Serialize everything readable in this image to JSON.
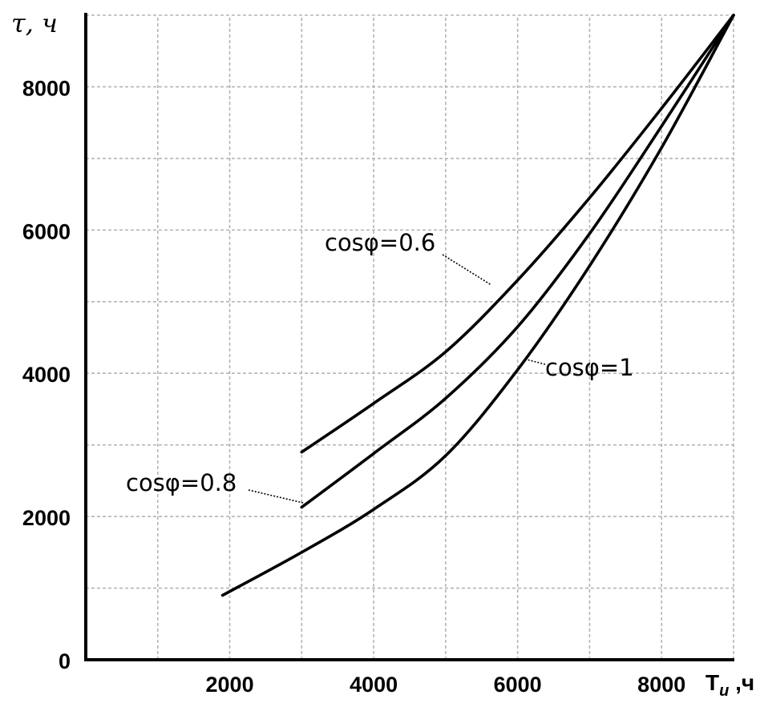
{
  "chart_data": {
    "type": "line",
    "ylabel": "τ, ч",
    "xlabel": {
      "main": "T",
      "sub": "и",
      "unit": " ,ч"
    },
    "xlim": [
      0,
      9000
    ],
    "ylim": [
      0,
      9000
    ],
    "grid": true,
    "x_ticks": [
      {
        "value": 2000,
        "label": "2000"
      },
      {
        "value": 4000,
        "label": "4000"
      },
      {
        "value": 6000,
        "label": "6000"
      },
      {
        "value": 8000,
        "label": "8000"
      }
    ],
    "y_ticks": [
      {
        "value": 0,
        "label": "0"
      },
      {
        "value": 2000,
        "label": "2000"
      },
      {
        "value": 4000,
        "label": "4000"
      },
      {
        "value": 6000,
        "label": "6000"
      },
      {
        "value": 8000,
        "label": "8000"
      }
    ],
    "grid_x": [
      1000,
      2000,
      3000,
      4000,
      5000,
      6000,
      7000,
      8000,
      9000
    ],
    "grid_y": [
      1000,
      2000,
      3000,
      4000,
      5000,
      6000,
      7000,
      8000,
      9000
    ],
    "series": [
      {
        "name": "cosφ=0.6",
        "x": [
          3000,
          4000,
          5000,
          6000,
          7000,
          8000,
          9000
        ],
        "y": [
          2900,
          3580,
          4300,
          5300,
          6450,
          7700,
          9000
        ]
      },
      {
        "name": "cosφ=0.8",
        "x": [
          3000,
          4000,
          5000,
          6000,
          7000,
          8000,
          9000
        ],
        "y": [
          2130,
          2880,
          3650,
          4650,
          5950,
          7450,
          9000
        ]
      },
      {
        "name": "cosφ=1",
        "x": [
          1900,
          3000,
          4000,
          5000,
          6000,
          7000,
          8000,
          9000
        ],
        "y": [
          900,
          1500,
          2100,
          2850,
          4050,
          5500,
          7150,
          9000
        ]
      }
    ],
    "annotations": [
      {
        "text": "cosφ=0.6",
        "series": 0
      },
      {
        "text": "cosφ=0.8",
        "series": 1
      },
      {
        "text": "cosφ=1",
        "series": 2
      }
    ]
  }
}
